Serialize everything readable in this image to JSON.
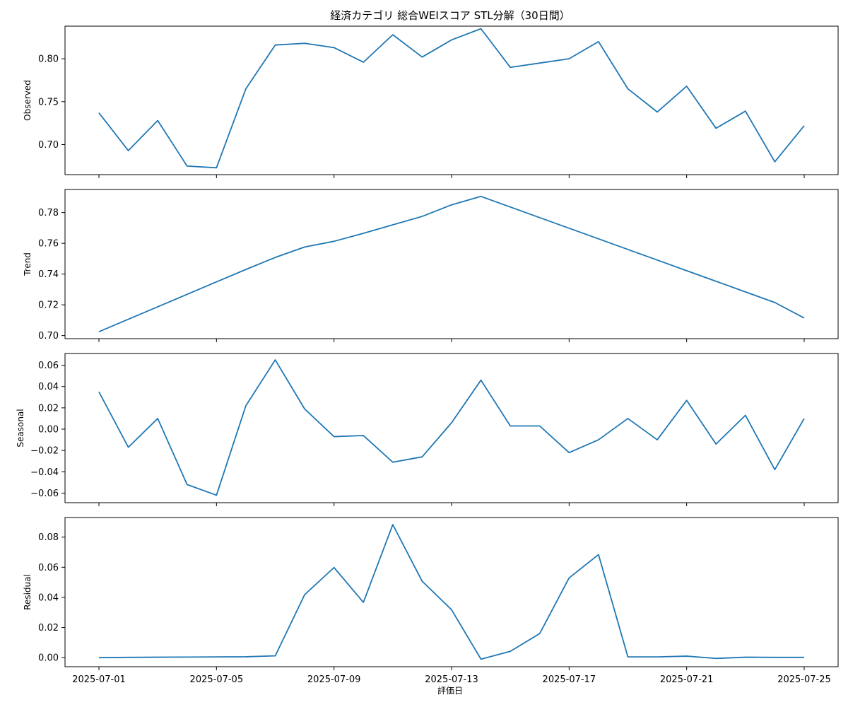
{
  "chart_data": {
    "type": "line",
    "title": "経済カテゴリ 総合WEIスコア STL分解（30日間）",
    "xlabel": "評価日",
    "x": [
      "2025-07-01",
      "2025-07-02",
      "2025-07-03",
      "2025-07-04",
      "2025-07-05",
      "2025-07-06",
      "2025-07-07",
      "2025-07-08",
      "2025-07-09",
      "2025-07-10",
      "2025-07-11",
      "2025-07-12",
      "2025-07-13",
      "2025-07-14",
      "2025-07-15",
      "2025-07-16",
      "2025-07-17",
      "2025-07-18",
      "2025-07-19",
      "2025-07-20",
      "2025-07-21",
      "2025-07-22",
      "2025-07-23",
      "2025-07-24",
      "2025-07-25"
    ],
    "x_ticks": [
      "2025-07-01",
      "2025-07-05",
      "2025-07-09",
      "2025-07-13",
      "2025-07-17",
      "2025-07-21",
      "2025-07-25"
    ],
    "grid": false,
    "color": "#1f77b4",
    "panels": [
      {
        "ylabel": "Observed",
        "ylim": [
          0.665,
          0.838
        ],
        "yticks": [
          0.7,
          0.75,
          0.8
        ],
        "ytick_labels": [
          "0.70",
          "0.75",
          "0.80"
        ],
        "values": [
          0.737,
          0.693,
          0.728,
          0.675,
          0.673,
          0.765,
          0.816,
          0.818,
          0.813,
          0.796,
          0.828,
          0.802,
          0.822,
          0.835,
          0.79,
          0.795,
          0.8,
          0.82,
          0.765,
          0.738,
          0.768,
          0.719,
          0.739,
          0.68,
          0.722
        ]
      },
      {
        "ylabel": "Trend",
        "ylim": [
          0.698,
          0.795
        ],
        "yticks": [
          0.7,
          0.72,
          0.74,
          0.76,
          0.78
        ],
        "ytick_labels": [
          "0.70",
          "0.72",
          "0.74",
          "0.76",
          "0.78"
        ],
        "values": [
          0.7025,
          0.7106,
          0.7187,
          0.7268,
          0.7349,
          0.743,
          0.7508,
          0.7576,
          0.7613,
          0.7665,
          0.772,
          0.7775,
          0.785,
          0.7905,
          0.7836,
          0.7767,
          0.7698,
          0.7629,
          0.756,
          0.7491,
          0.7422,
          0.7353,
          0.7284,
          0.7215,
          0.7114
        ]
      },
      {
        "ylabel": "Seasonal",
        "ylim": [
          -0.069,
          0.071
        ],
        "yticks": [
          -0.06,
          -0.04,
          -0.02,
          0.0,
          0.02,
          0.04,
          0.06
        ],
        "ytick_labels": [
          "−0.06",
          "−0.04",
          "−0.02",
          "0.00",
          "0.02",
          "0.04",
          "0.06"
        ],
        "values": [
          0.035,
          -0.017,
          0.01,
          -0.052,
          -0.062,
          0.022,
          0.065,
          0.019,
          -0.007,
          -0.006,
          -0.031,
          -0.026,
          0.006,
          0.046,
          0.003,
          0.003,
          -0.022,
          -0.01,
          0.01,
          -0.01,
          0.027,
          -0.014,
          0.013,
          -0.038,
          0.01
        ]
      },
      {
        "ylabel": "Residual",
        "ylim": [
          -0.006,
          0.093
        ],
        "yticks": [
          0.0,
          0.02,
          0.04,
          0.06,
          0.08
        ],
        "ytick_labels": [
          "0.00",
          "0.02",
          "0.04",
          "0.06",
          "0.08"
        ],
        "values": [
          0.0,
          0.0002,
          0.0003,
          0.0004,
          0.0005,
          0.0006,
          0.0012,
          0.0418,
          0.0598,
          0.0367,
          0.0883,
          0.0507,
          0.0318,
          -0.001,
          0.0042,
          0.016,
          0.0529,
          0.0684,
          0.0005,
          0.0005,
          0.001,
          -0.0005,
          0.0003,
          0.0002,
          0.0002
        ]
      }
    ]
  }
}
